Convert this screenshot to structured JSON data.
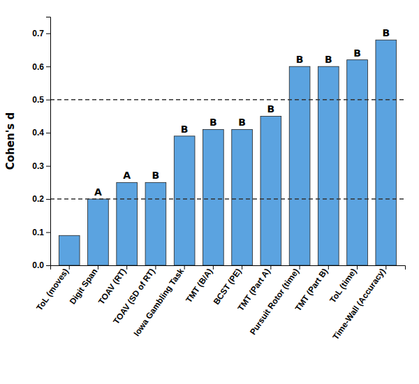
{
  "chart_data": {
    "type": "bar",
    "categories": [
      "ToL (moves)",
      "Digit Span",
      "TOAV (RT)",
      "TOAV (SD of RT)",
      "Iowa Gambling Task",
      "TMT (B/A)",
      "BCST (PE)",
      "TMT (Part A)",
      "Pursuit Rotor (time)",
      "TMT (Part B)",
      "ToL (time)",
      "Time-Wall (Accuracy)"
    ],
    "values": [
      0.09,
      0.2,
      0.25,
      0.25,
      0.39,
      0.41,
      0.41,
      0.45,
      0.6,
      0.6,
      0.62,
      0.68
    ],
    "bar_labels": [
      null,
      "A",
      "A",
      "B",
      "B",
      "B",
      "B",
      "B",
      "B",
      "B",
      "B",
      "B"
    ],
    "color": "#5BA3E0",
    "y_label": "Cohen's d",
    "ylim": [
      0,
      0.75
    ],
    "yticks": [
      {
        "value": 0.0,
        "label": "0.0"
      },
      0.1,
      0.2,
      0.3,
      0.4,
      0.5,
      0.6,
      0.7
    ],
    "hlines": [
      0.2,
      0.5
    ],
    "grid": false
  }
}
